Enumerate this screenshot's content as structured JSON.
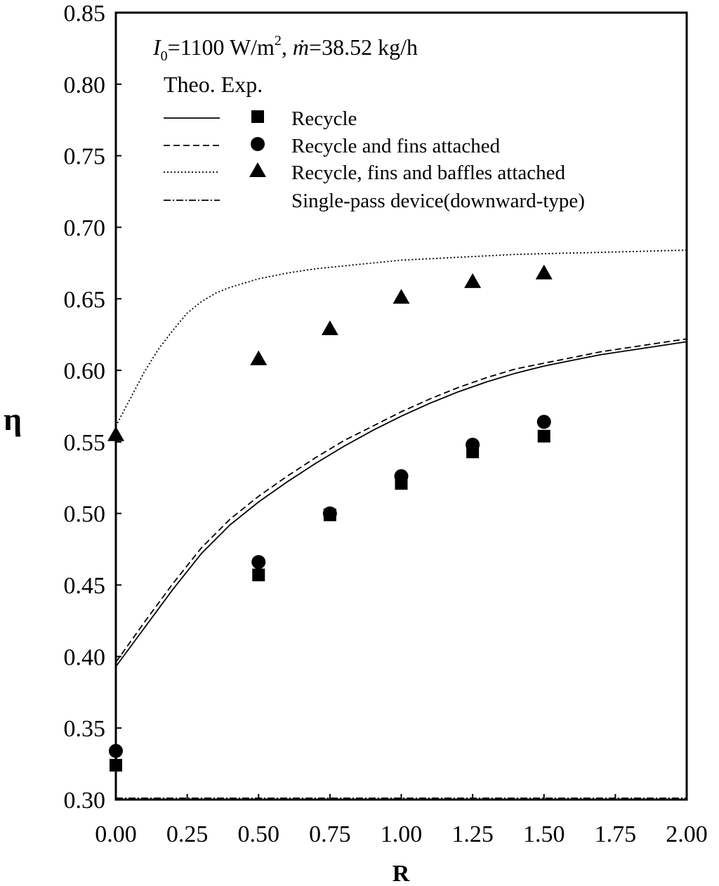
{
  "chart_data": {
    "type": "line",
    "xlabel": "R",
    "ylabel": "η",
    "xlim": [
      0,
      2.0
    ],
    "ylim": [
      0.3,
      0.85
    ],
    "x_ticks": [
      "0.00",
      "0.25",
      "0.50",
      "0.75",
      "1.00",
      "1.25",
      "1.50",
      "1.75",
      "2.00"
    ],
    "y_ticks": [
      "0.30",
      "0.35",
      "0.40",
      "0.45",
      "0.50",
      "0.55",
      "0.60",
      "0.65",
      "0.70",
      "0.75",
      "0.80",
      "0.85"
    ],
    "annotation": {
      "I0_symbol": "I",
      "I0_subscript": "0",
      "I0_value": "=1100 W/m",
      "I0_exponent": "2",
      "separator": ", ",
      "m_symbol": "ṁ",
      "m_value": "=38.52 kg/h"
    },
    "legend_header": "Theo. Exp.",
    "legend_placement": "top-left",
    "series": [
      {
        "name": "Recycle",
        "line_style": "solid",
        "marker": "square",
        "theory": {
          "x": [
            0,
            0.1,
            0.2,
            0.3,
            0.4,
            0.5,
            0.6,
            0.7,
            0.8,
            0.9,
            1.0,
            1.1,
            1.2,
            1.3,
            1.4,
            1.5,
            1.6,
            1.7,
            1.8,
            1.9,
            2.0
          ],
          "y": [
            0.393,
            0.42,
            0.447,
            0.472,
            0.492,
            0.508,
            0.522,
            0.535,
            0.547,
            0.558,
            0.568,
            0.577,
            0.585,
            0.592,
            0.598,
            0.603,
            0.607,
            0.611,
            0.614,
            0.617,
            0.62
          ]
        },
        "experiment": {
          "x": [
            0,
            0.5,
            0.75,
            1.0,
            1.25,
            1.5
          ],
          "y": [
            0.324,
            0.457,
            0.499,
            0.521,
            0.543,
            0.554
          ]
        }
      },
      {
        "name": "Recycle and fins attached",
        "line_style": "dashed",
        "marker": "circle",
        "theory": {
          "x": [
            0,
            0.1,
            0.2,
            0.3,
            0.4,
            0.5,
            0.6,
            0.7,
            0.8,
            0.9,
            1.0,
            1.1,
            1.2,
            1.3,
            1.4,
            1.5,
            1.6,
            1.7,
            1.8,
            1.9,
            2.0
          ],
          "y": [
            0.396,
            0.424,
            0.451,
            0.476,
            0.496,
            0.512,
            0.526,
            0.539,
            0.551,
            0.561,
            0.571,
            0.58,
            0.588,
            0.595,
            0.601,
            0.605,
            0.609,
            0.613,
            0.616,
            0.619,
            0.622
          ]
        },
        "experiment": {
          "x": [
            0,
            0.5,
            0.75,
            1.0,
            1.25,
            1.5
          ],
          "y": [
            0.334,
            0.466,
            0.5,
            0.526,
            0.548,
            0.564
          ]
        }
      },
      {
        "name": "Recycle, fins and baffles attached",
        "line_style": "dotted",
        "marker": "triangle",
        "theory": {
          "x": [
            0,
            0.05,
            0.1,
            0.15,
            0.2,
            0.25,
            0.3,
            0.35,
            0.4,
            0.5,
            0.6,
            0.7,
            0.8,
            1.0,
            1.2,
            1.4,
            1.6,
            1.8,
            2.0
          ],
          "y": [
            0.561,
            0.58,
            0.599,
            0.615,
            0.628,
            0.64,
            0.648,
            0.654,
            0.658,
            0.664,
            0.668,
            0.671,
            0.673,
            0.677,
            0.679,
            0.681,
            0.682,
            0.683,
            0.684
          ]
        },
        "experiment": {
          "x": [
            0,
            0.5,
            0.75,
            1.0,
            1.25,
            1.5
          ],
          "y": [
            0.555,
            0.608,
            0.629,
            0.651,
            0.662,
            0.668
          ]
        }
      },
      {
        "name": "Single-pass device(downward-type)",
        "line_style": "dash-dot",
        "marker": "none",
        "theory": {
          "x": [
            0,
            2.0
          ],
          "y": [
            0.301,
            0.301
          ]
        }
      }
    ]
  }
}
